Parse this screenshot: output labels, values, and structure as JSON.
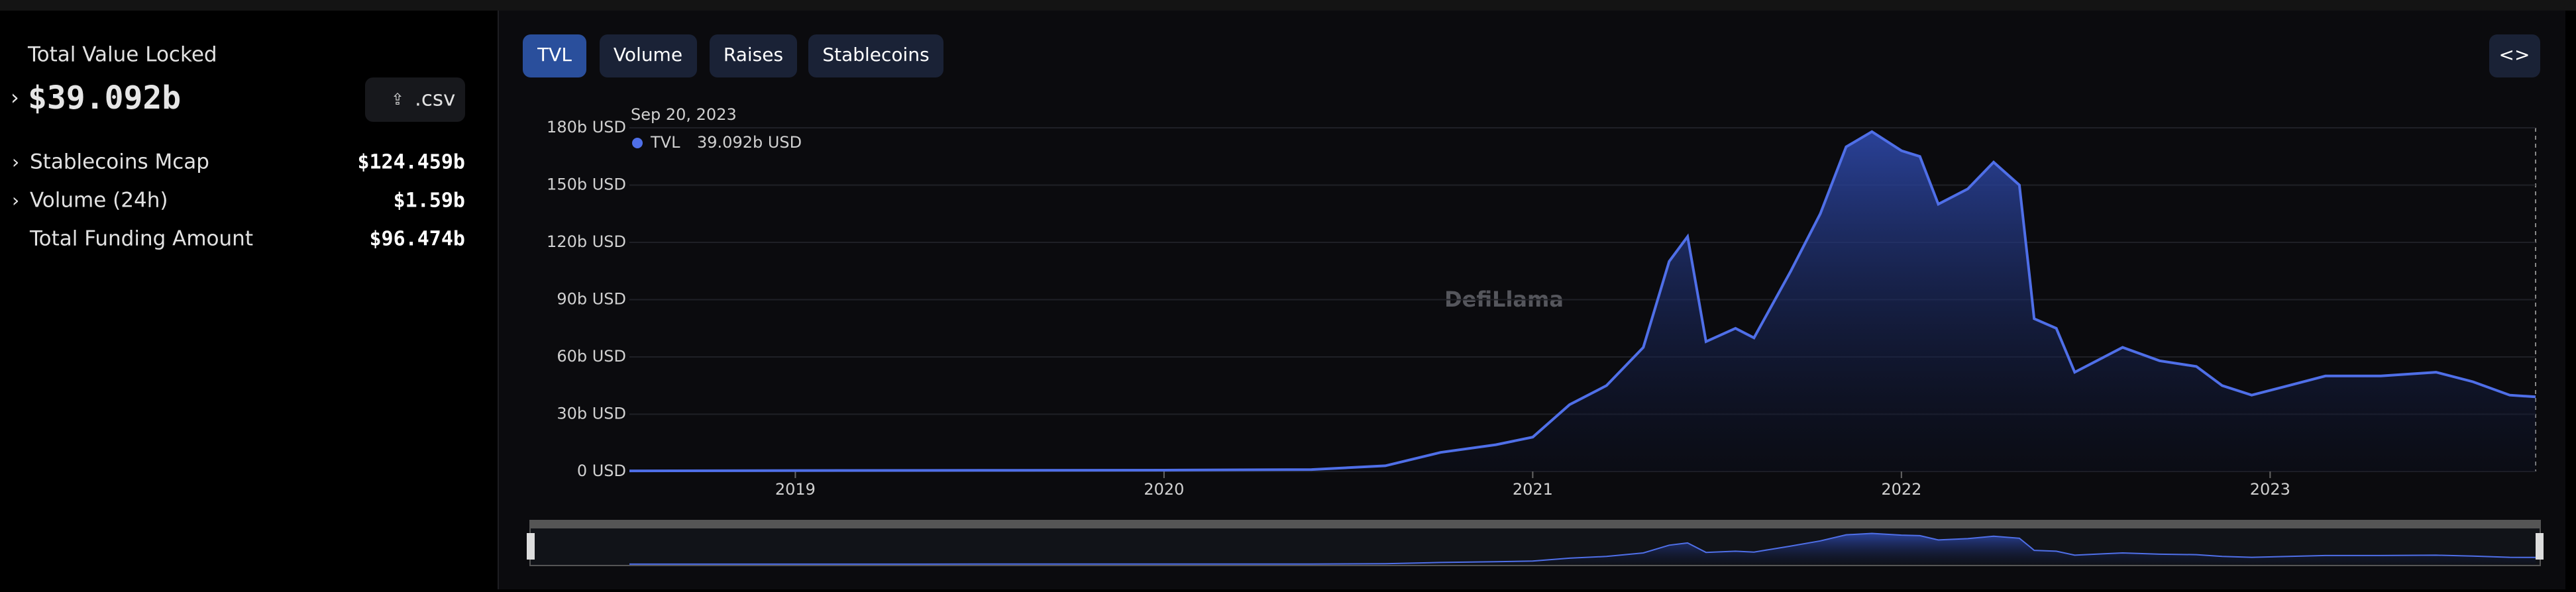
{
  "sidebar": {
    "tvl_label": "Total Value Locked",
    "tvl": "$39.092b",
    "csv": ".csv",
    "stats": [
      {
        "label": "Stablecoins Mcap",
        "value": "$124.459b"
      },
      {
        "label": "Volume (24h)",
        "value": "$1.59b"
      },
      {
        "label": "Total Funding Amount",
        "value": "$96.474b"
      }
    ]
  },
  "tabs": [
    "TVL",
    "Volume",
    "Raises",
    "Stablecoins"
  ],
  "watermark": "DefiLlama",
  "chart_data": {
    "type": "area",
    "tooltip_date": "Sep 20, 2023",
    "tooltip_value": "39.092b USD",
    "x": [
      2018.55,
      2019.0,
      2019.5,
      2020.0,
      2020.4,
      2020.6,
      2020.75,
      2020.9,
      2021.0,
      2021.1,
      2021.2,
      2021.3,
      2021.37,
      2021.42,
      2021.47,
      2021.55,
      2021.6,
      2021.7,
      2021.78,
      2021.85,
      2021.92,
      2022.0,
      2022.05,
      2022.1,
      2022.18,
      2022.25,
      2022.32,
      2022.35,
      2022.36,
      2022.42,
      2022.47,
      2022.55,
      2022.6,
      2022.7,
      2022.8,
      2022.87,
      2022.95,
      2023.05,
      2023.15,
      2023.3,
      2023.45,
      2023.55,
      2023.65,
      2023.72
    ],
    "series": [
      {
        "name": "TVL",
        "color": "#4f6fe8",
        "values": [
          0.3,
          0.5,
          0.6,
          0.7,
          1,
          3,
          10,
          14,
          18,
          35,
          45,
          65,
          110,
          123,
          68,
          75,
          70,
          105,
          135,
          170,
          178,
          168,
          165,
          140,
          148,
          162,
          150,
          98,
          80,
          75,
          52,
          60,
          65,
          58,
          55,
          45,
          40,
          45,
          50,
          50,
          52,
          47,
          40,
          39.092
        ]
      }
    ],
    "xlim": [
      2018.55,
      2023.72
    ],
    "xticks": [
      2019,
      2020,
      2021,
      2022,
      2023
    ],
    "ylim": [
      0,
      180
    ],
    "yticks": [
      {
        "value": 0,
        "label": "0 USD"
      },
      {
        "value": 30,
        "label": "30b USD"
      },
      {
        "value": 60,
        "label": "60b USD"
      },
      {
        "value": 90,
        "label": "90b USD"
      },
      {
        "value": 120,
        "label": "120b USD"
      },
      {
        "value": 150,
        "label": "150b USD"
      },
      {
        "value": 180,
        "label": "180b USD"
      }
    ],
    "grid": true
  }
}
